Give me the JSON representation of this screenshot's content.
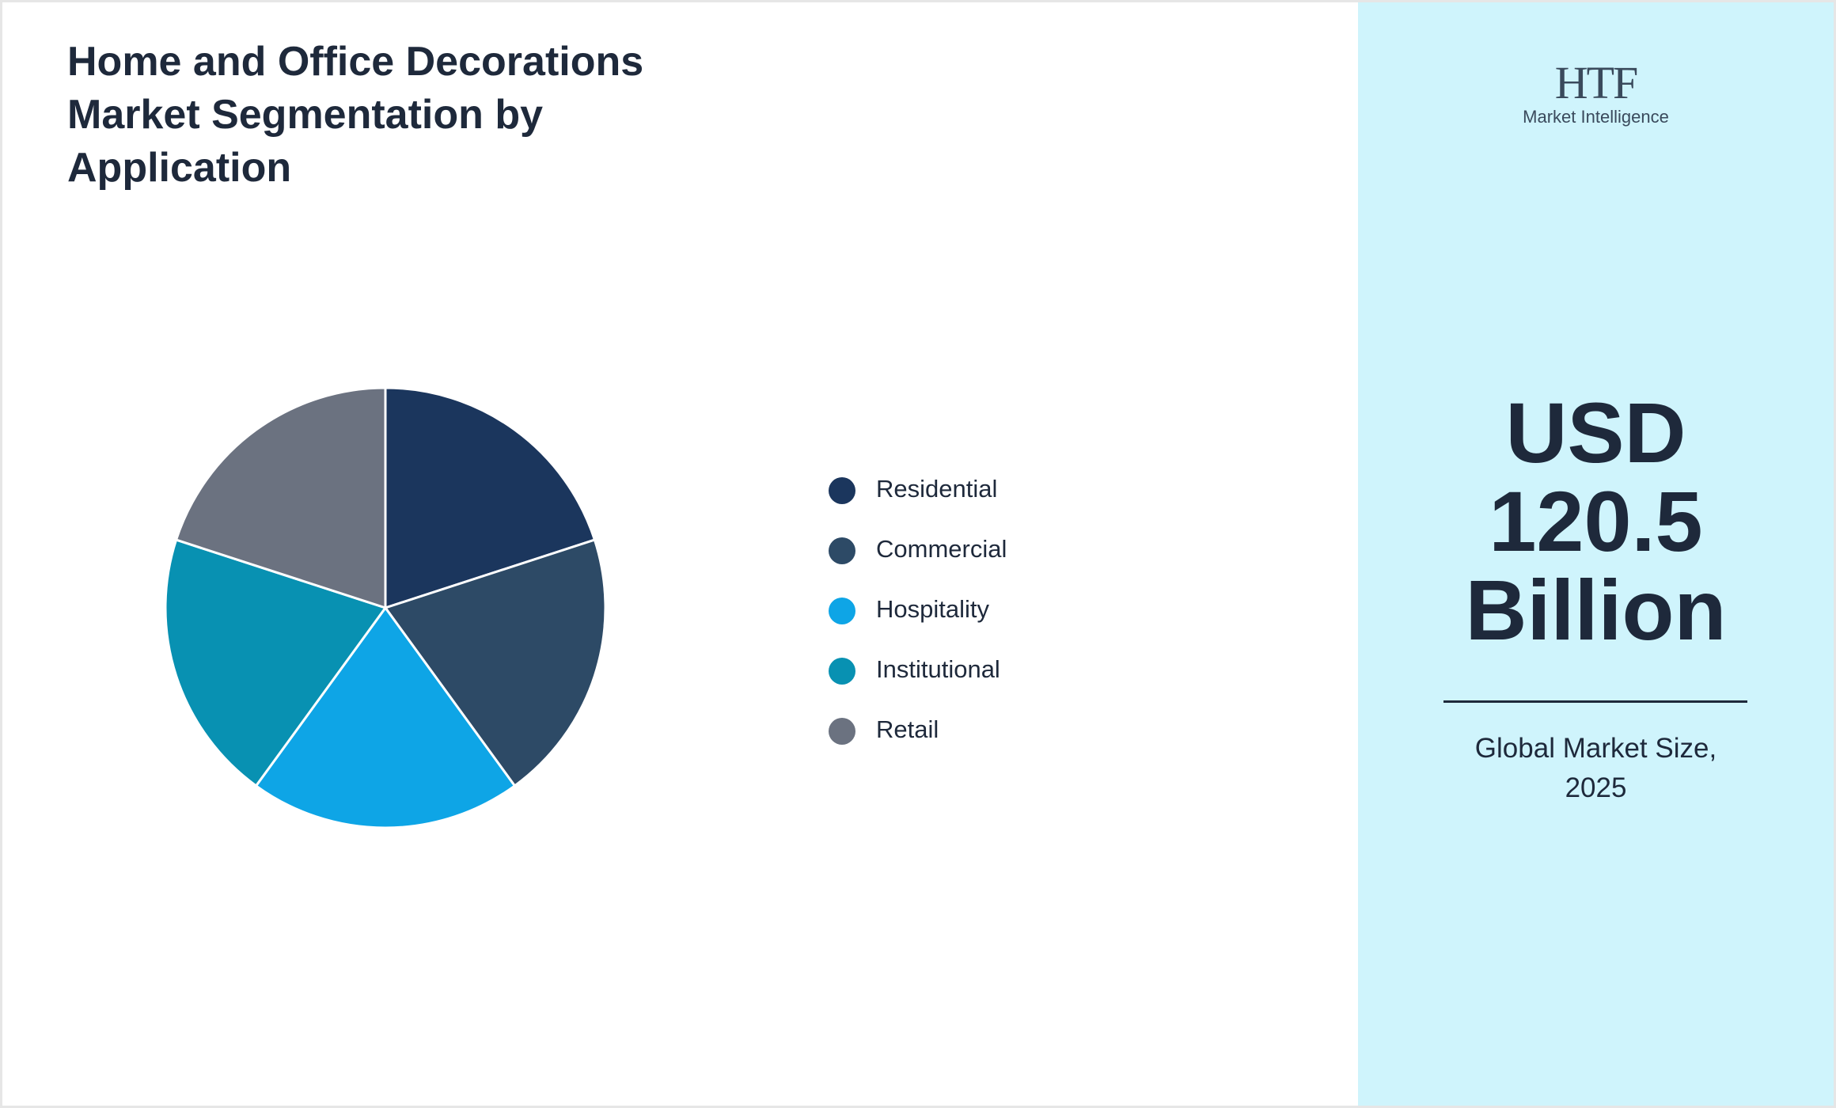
{
  "chart_data": {
    "type": "pie",
    "title": "Home and Office Decorations Market Segmentation by Application",
    "categories": [
      "Residential",
      "Commercial",
      "Hospitality",
      "Institutional",
      "Retail"
    ],
    "values": [
      20,
      20,
      20,
      20,
      20
    ],
    "colors": [
      "#1b365d",
      "#2d4a66",
      "#0ea5e6",
      "#0891b2",
      "#6b7280"
    ]
  },
  "panel": {
    "logo": {
      "brand": "HTF",
      "tagline": "Market Intelligence"
    },
    "value_lines": [
      "USD",
      "120.5",
      "Billion"
    ],
    "caption": "Global Market Size, 2025"
  }
}
